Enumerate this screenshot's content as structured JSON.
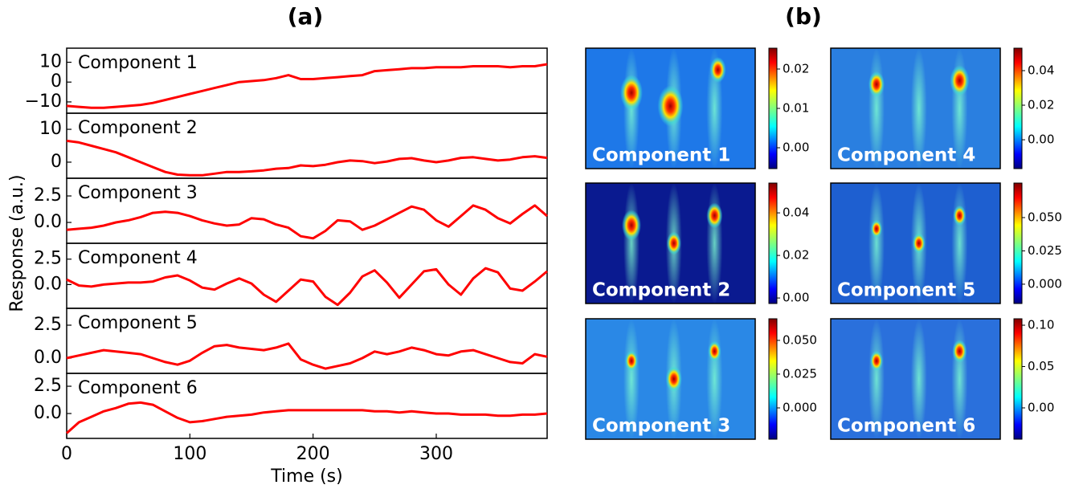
{
  "figure": {
    "label_a": "(a)",
    "label_b": "(b)",
    "ylabel": "Response (a.u.)"
  },
  "chart_data": [
    {
      "type": "line",
      "label": "Component 1",
      "xlim": [
        0,
        390
      ],
      "ylim": [
        -15.7,
        17.1
      ],
      "yticks": [
        10,
        0,
        {
          "value": -10,
          "label": "−10"
        }
      ],
      "x": [
        0,
        10,
        20,
        30,
        40,
        50,
        60,
        70,
        80,
        90,
        100,
        110,
        120,
        130,
        140,
        150,
        160,
        170,
        180,
        190,
        200,
        210,
        220,
        230,
        240,
        250,
        260,
        270,
        280,
        290,
        300,
        310,
        320,
        330,
        340,
        350,
        360,
        370,
        380,
        390
      ],
      "series": [
        {
          "color": "#ff0000",
          "values": [
            -12,
            -12.5,
            -13,
            -13,
            -12.5,
            -12,
            -11.5,
            -10.5,
            -9,
            -7.5,
            -6,
            -4.5,
            -3,
            -1.5,
            0,
            0.5,
            1,
            2,
            3.5,
            1.5,
            1.5,
            2,
            2.5,
            3,
            3.5,
            5.5,
            6,
            6.5,
            7,
            7,
            7.5,
            7.5,
            7.5,
            8,
            8,
            8,
            7.5,
            8,
            8,
            9
          ]
        }
      ]
    },
    {
      "type": "line",
      "label": "Component 2",
      "xlim": [
        0,
        390
      ],
      "ylim": [
        -4.9,
        14.9
      ],
      "yticks": [
        10,
        0
      ],
      "x": [
        0,
        10,
        20,
        30,
        40,
        50,
        60,
        70,
        80,
        90,
        100,
        110,
        120,
        130,
        140,
        150,
        160,
        170,
        180,
        190,
        200,
        210,
        220,
        230,
        240,
        250,
        260,
        270,
        280,
        290,
        300,
        310,
        320,
        330,
        340,
        350,
        360,
        370,
        380,
        390
      ],
      "series": [
        {
          "color": "#ff0000",
          "values": [
            6.5,
            6,
            5,
            4,
            3,
            1.5,
            0,
            -1.5,
            -3,
            -3.8,
            -4,
            -4,
            -3.5,
            -3,
            -3,
            -2.8,
            -2.5,
            -2,
            -1.8,
            -1,
            -1.2,
            -0.8,
            0,
            0.5,
            0.3,
            -0.3,
            0.2,
            1,
            1.2,
            0.5,
            0,
            0.5,
            1.3,
            1.5,
            1,
            0.5,
            0.8,
            1.5,
            1.8,
            1.3
          ]
        }
      ]
    },
    {
      "type": "line",
      "label": "Component 3",
      "xlim": [
        0,
        390
      ],
      "ylim": [
        -1.97,
        4.17
      ],
      "yticks": [
        2.5,
        {
          "value": 0,
          "label": "0.0"
        }
      ],
      "x": [
        0,
        10,
        20,
        30,
        40,
        50,
        60,
        70,
        80,
        90,
        100,
        110,
        120,
        130,
        140,
        150,
        160,
        170,
        180,
        190,
        200,
        210,
        220,
        230,
        240,
        250,
        260,
        270,
        280,
        290,
        300,
        310,
        320,
        330,
        340,
        350,
        360,
        370,
        380,
        390
      ],
      "series": [
        {
          "color": "#ff0000",
          "values": [
            -0.7,
            -0.6,
            -0.5,
            -0.3,
            0,
            0.2,
            0.5,
            0.9,
            1.0,
            0.9,
            0.6,
            0.2,
            -0.1,
            -0.3,
            -0.2,
            0.4,
            0.3,
            -0.2,
            -0.5,
            -1.3,
            -1.5,
            -0.8,
            0.2,
            0.1,
            -0.7,
            -0.3,
            0.3,
            0.9,
            1.5,
            1.2,
            0.2,
            -0.4,
            0.6,
            1.6,
            1.2,
            0.4,
            -0.1,
            0.8,
            1.6,
            0.6
          ]
        }
      ]
    },
    {
      "type": "line",
      "label": "Component 4",
      "xlim": [
        0,
        390
      ],
      "ylim": [
        -2.34,
        4.06
      ],
      "yticks": [
        2.5,
        {
          "value": 0,
          "label": "0.0"
        }
      ],
      "x": [
        0,
        10,
        20,
        30,
        40,
        50,
        60,
        70,
        80,
        90,
        100,
        110,
        120,
        130,
        140,
        150,
        160,
        170,
        180,
        190,
        200,
        210,
        220,
        230,
        240,
        250,
        260,
        270,
        280,
        290,
        300,
        310,
        320,
        330,
        340,
        350,
        360,
        370,
        380,
        390
      ],
      "series": [
        {
          "color": "#ff0000",
          "values": [
            0.5,
            -0.1,
            -0.2,
            0,
            0.1,
            0.2,
            0.2,
            0.3,
            0.7,
            0.9,
            0.4,
            -0.3,
            -0.5,
            0.1,
            0.6,
            0.1,
            -1.0,
            -1.7,
            -0.6,
            0.5,
            0.3,
            -1.2,
            -2.0,
            -0.8,
            0.8,
            1.4,
            0.2,
            -1.3,
            0.0,
            1.3,
            1.5,
            0.0,
            -1.0,
            0.6,
            1.6,
            1.2,
            -0.4,
            -0.6,
            0.3,
            1.3
          ]
        }
      ]
    },
    {
      "type": "line",
      "label": "Component 5",
      "xlim": [
        0,
        390
      ],
      "ylim": [
        -1.16,
        3.78
      ],
      "yticks": [
        2.5,
        {
          "value": 0,
          "label": "0.0"
        }
      ],
      "x": [
        0,
        10,
        20,
        30,
        40,
        50,
        60,
        70,
        80,
        90,
        100,
        110,
        120,
        130,
        140,
        150,
        160,
        170,
        180,
        190,
        200,
        210,
        220,
        230,
        240,
        250,
        260,
        270,
        280,
        290,
        300,
        310,
        320,
        330,
        340,
        350,
        360,
        370,
        380,
        390
      ],
      "series": [
        {
          "color": "#ff0000",
          "values": [
            0,
            0.2,
            0.4,
            0.6,
            0.5,
            0.4,
            0.3,
            0,
            -0.3,
            -0.5,
            -0.2,
            0.4,
            0.9,
            1.0,
            0.8,
            0.7,
            0.6,
            0.8,
            1.1,
            -0.1,
            -0.5,
            -0.8,
            -0.6,
            -0.4,
            0.0,
            0.5,
            0.3,
            0.5,
            0.8,
            0.6,
            0.3,
            0.2,
            0.5,
            0.6,
            0.3,
            0.0,
            -0.3,
            -0.4,
            0.3,
            0.1
          ]
        }
      ]
    },
    {
      "type": "line",
      "label": "Component 6",
      "xlim": [
        0,
        390
      ],
      "ylim": [
        -2.28,
        3.68
      ],
      "yticks": [
        2.5,
        {
          "value": 0,
          "label": "0.0"
        }
      ],
      "xticks": [
        0,
        100,
        200,
        300
      ],
      "xlabel": "Time (s)",
      "x": [
        0,
        10,
        20,
        30,
        40,
        50,
        60,
        70,
        80,
        90,
        100,
        110,
        120,
        130,
        140,
        150,
        160,
        170,
        180,
        190,
        200,
        210,
        220,
        230,
        240,
        250,
        260,
        270,
        280,
        290,
        300,
        310,
        320,
        330,
        340,
        350,
        360,
        370,
        380,
        390
      ],
      "series": [
        {
          "color": "#ff0000",
          "values": [
            -1.8,
            -0.8,
            -0.3,
            0.2,
            0.5,
            0.9,
            1.0,
            0.8,
            0.2,
            -0.4,
            -0.8,
            -0.7,
            -0.5,
            -0.3,
            -0.2,
            -0.1,
            0.1,
            0.2,
            0.3,
            0.3,
            0.3,
            0.3,
            0.3,
            0.3,
            0.3,
            0.2,
            0.2,
            0.1,
            0.2,
            0.1,
            0.0,
            0.0,
            -0.1,
            -0.1,
            -0.1,
            -0.2,
            -0.2,
            -0.1,
            -0.1,
            0.0
          ]
        }
      ]
    },
    {
      "type": "heatmap",
      "label": "Component 1",
      "clim": [
        -0.0053,
        0.0253
      ],
      "cticks": [
        0.02,
        0.01,
        {
          "value": 0,
          "label": "0.00"
        }
      ]
    },
    {
      "type": "heatmap",
      "label": "Component 2",
      "clim": [
        -0.0026,
        0.054
      ],
      "cticks": [
        0.04,
        0.02,
        {
          "value": 0,
          "label": "0.00"
        }
      ]
    },
    {
      "type": "heatmap",
      "label": "Component 3",
      "clim": [
        -0.0232,
        0.066
      ],
      "cticks": [
        {
          "value": 0.05,
          "label": "0.050"
        },
        0.025,
        {
          "value": 0,
          "label": "0.000"
        }
      ]
    },
    {
      "type": "heatmap",
      "label": "Component 4",
      "clim": [
        -0.0167,
        0.053
      ],
      "cticks": [
        0.04,
        0.02,
        {
          "value": 0,
          "label": "0.00"
        }
      ]
    },
    {
      "type": "heatmap",
      "label": "Component 5",
      "clim": [
        -0.0145,
        0.0759
      ],
      "cticks": [
        {
          "value": 0.05,
          "label": "0.050"
        },
        0.025,
        {
          "value": 0,
          "label": "0.000"
        }
      ]
    },
    {
      "type": "heatmap",
      "label": "Component 6",
      "clim": [
        -0.0379,
        0.1078
      ],
      "cticks": [
        {
          "value": 0.1,
          "label": "0.10"
        },
        0.05,
        {
          "value": 0,
          "label": "0.00"
        }
      ]
    }
  ]
}
